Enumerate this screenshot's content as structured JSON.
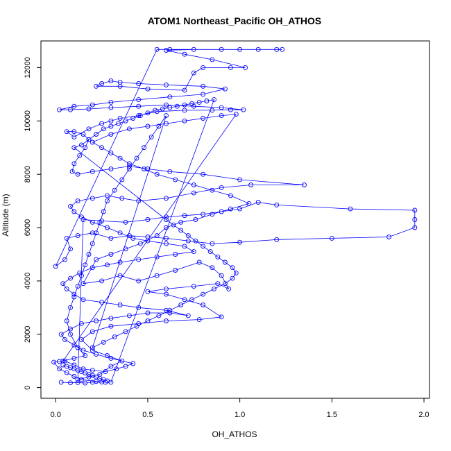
{
  "chart_data": {
    "type": "scatter",
    "title": "ATOM1 Northeast_Pacific OH_ATHOS",
    "xlabel": "OH_ATHOS",
    "ylabel": "Altitude (m)",
    "xlim": [
      -0.08,
      2.03
    ],
    "ylim": [
      -400,
      13000
    ],
    "xticks": [
      0.0,
      0.5,
      1.0,
      1.5,
      2.0
    ],
    "xtick_labels": [
      "0.0",
      "0.5",
      "1.0",
      "1.5",
      "2.0"
    ],
    "yticks": [
      0,
      2000,
      4000,
      6000,
      8000,
      10000,
      12000
    ],
    "ytick_labels": [
      "0",
      "2000",
      "4000",
      "6000",
      "8000",
      "10000",
      "12000"
    ],
    "grid": false,
    "legend": "none",
    "marker": "open-circle",
    "connected": true,
    "color": "#0000ff",
    "points": [
      [
        0.03,
        200
      ],
      [
        0.08,
        180
      ],
      [
        0.12,
        190
      ],
      [
        0.16,
        170
      ],
      [
        0.2,
        200
      ],
      [
        0.25,
        210
      ],
      [
        0.27,
        200
      ],
      [
        0.22,
        230
      ],
      [
        0.14,
        300
      ],
      [
        0.1,
        420
      ],
      [
        0.06,
        560
      ],
      [
        0.02,
        700
      ],
      [
        -0.01,
        950
      ],
      [
        0.02,
        980
      ],
      [
        0.05,
        1000
      ],
      [
        0.1,
        850
      ],
      [
        0.15,
        700
      ],
      [
        0.2,
        650
      ],
      [
        0.27,
        600
      ],
      [
        0.33,
        700
      ],
      [
        0.38,
        800
      ],
      [
        0.42,
        900
      ],
      [
        0.3,
        1100
      ],
      [
        0.22,
        1250
      ],
      [
        0.15,
        1400
      ],
      [
        0.1,
        1600
      ],
      [
        0.05,
        1800
      ],
      [
        0.03,
        2000
      ],
      [
        0.08,
        2200
      ],
      [
        0.14,
        2400
      ],
      [
        0.22,
        2500
      ],
      [
        0.3,
        2600
      ],
      [
        0.4,
        2700
      ],
      [
        0.5,
        2800
      ],
      [
        0.62,
        2800
      ],
      [
        0.72,
        2700
      ],
      [
        0.6,
        2900
      ],
      [
        0.45,
        3000
      ],
      [
        0.35,
        3100
      ],
      [
        0.25,
        3200
      ],
      [
        0.15,
        3300
      ],
      [
        0.1,
        3500
      ],
      [
        0.06,
        3700
      ],
      [
        0.04,
        3900
      ],
      [
        0.08,
        4100
      ],
      [
        0.13,
        4300
      ],
      [
        0.2,
        4500
      ],
      [
        0.28,
        4600
      ],
      [
        0.35,
        4700
      ],
      [
        0.45,
        4800
      ],
      [
        0.55,
        4900
      ],
      [
        0.65,
        5000
      ],
      [
        0.75,
        5100
      ],
      [
        0.7,
        5300
      ],
      [
        0.6,
        5400
      ],
      [
        0.5,
        5500
      ],
      [
        0.42,
        5600
      ],
      [
        0.35,
        5800
      ],
      [
        0.28,
        6000
      ],
      [
        0.2,
        6200
      ],
      [
        0.14,
        6400
      ],
      [
        0.1,
        6600
      ],
      [
        0.08,
        6800
      ],
      [
        0.12,
        7000
      ],
      [
        0.2,
        7100
      ],
      [
        0.28,
        7200
      ],
      [
        0.36,
        7100
      ],
      [
        0.45,
        7000
      ],
      [
        0.6,
        7100
      ],
      [
        0.75,
        7300
      ],
      [
        0.9,
        7500
      ],
      [
        1.06,
        7600
      ],
      [
        1.35,
        7600
      ],
      [
        1.0,
        7800
      ],
      [
        0.8,
        8000
      ],
      [
        0.62,
        8100
      ],
      [
        0.5,
        8200
      ],
      [
        0.4,
        8300
      ],
      [
        0.3,
        8200
      ],
      [
        0.2,
        8100
      ],
      [
        0.12,
        8000
      ],
      [
        0.09,
        8100
      ],
      [
        0.1,
        8400
      ],
      [
        0.13,
        8700
      ],
      [
        0.16,
        9000
      ],
      [
        0.18,
        9300
      ],
      [
        0.15,
        9500
      ],
      [
        0.1,
        9600
      ],
      [
        0.06,
        9600
      ],
      [
        0.1,
        9400
      ],
      [
        0.18,
        9700
      ],
      [
        0.25,
        9900
      ],
      [
        0.3,
        10000
      ],
      [
        0.35,
        10100
      ],
      [
        0.45,
        10200
      ],
      [
        0.55,
        10350
      ],
      [
        0.7,
        10400
      ],
      [
        0.85,
        10400
      ],
      [
        0.95,
        10420
      ],
      [
        1.02,
        10420
      ],
      [
        0.9,
        10500
      ],
      [
        0.75,
        10550
      ],
      [
        0.6,
        10600
      ],
      [
        0.45,
        10550
      ],
      [
        0.3,
        10500
      ],
      [
        0.18,
        10450
      ],
      [
        0.08,
        10420
      ],
      [
        0.02,
        10420
      ],
      [
        0.1,
        10550
      ],
      [
        0.2,
        10600
      ],
      [
        0.3,
        10700
      ],
      [
        0.45,
        10800
      ],
      [
        0.62,
        10900
      ],
      [
        0.8,
        11000
      ],
      [
        0.92,
        11200
      ],
      [
        0.8,
        11300
      ],
      [
        0.6,
        11350
      ],
      [
        0.45,
        11400
      ],
      [
        0.35,
        11450
      ],
      [
        0.3,
        11500
      ],
      [
        0.25,
        11400
      ],
      [
        0.22,
        11300
      ],
      [
        0.35,
        11300
      ],
      [
        0.5,
        11200
      ],
      [
        0.7,
        11150
      ],
      [
        0.75,
        11800
      ],
      [
        0.8,
        12000
      ],
      [
        0.95,
        12000
      ],
      [
        1.03,
        12000
      ],
      [
        0.85,
        12300
      ],
      [
        0.7,
        12500
      ],
      [
        0.6,
        12650
      ],
      [
        0.75,
        12680
      ],
      [
        0.9,
        12680
      ],
      [
        1.0,
        12680
      ],
      [
        1.1,
        12680
      ],
      [
        1.2,
        12680
      ],
      [
        1.23,
        12680
      ],
      [
        0.62,
        12680
      ],
      [
        0.55,
        12680
      ],
      [
        0.0,
        4550
      ],
      [
        0.05,
        4800
      ],
      [
        0.08,
        5200
      ],
      [
        0.06,
        5600
      ],
      [
        0.12,
        5700
      ],
      [
        0.2,
        5800
      ],
      [
        0.3,
        5600
      ],
      [
        0.4,
        5700
      ],
      [
        0.5,
        5650
      ],
      [
        0.6,
        5600
      ],
      [
        0.72,
        5500
      ],
      [
        0.85,
        5400
      ],
      [
        1.0,
        5450
      ],
      [
        1.2,
        5550
      ],
      [
        1.5,
        5600
      ],
      [
        1.81,
        5650
      ],
      [
        1.95,
        6000
      ],
      [
        1.95,
        6300
      ],
      [
        1.95,
        6650
      ],
      [
        1.6,
        6700
      ],
      [
        1.2,
        6850
      ],
      [
        1.1,
        6950
      ],
      [
        1.0,
        6700
      ],
      [
        0.9,
        6600
      ],
      [
        0.8,
        6500
      ],
      [
        0.7,
        6450
      ],
      [
        0.6,
        6400
      ],
      [
        0.5,
        6300
      ],
      [
        0.38,
        6200
      ],
      [
        0.25,
        6250
      ],
      [
        0.15,
        6300
      ],
      [
        0.12,
        300
      ],
      [
        0.18,
        400
      ],
      [
        0.24,
        500
      ],
      [
        0.3,
        800
      ],
      [
        0.36,
        1000
      ],
      [
        0.28,
        1200
      ],
      [
        0.2,
        1400
      ],
      [
        0.14,
        1800
      ],
      [
        0.2,
        2100
      ],
      [
        0.3,
        2300
      ],
      [
        0.45,
        2400
      ],
      [
        0.6,
        2500
      ],
      [
        0.78,
        2550
      ],
      [
        0.9,
        2650
      ],
      [
        0.8,
        3100
      ],
      [
        0.7,
        3300
      ],
      [
        0.6,
        3500
      ],
      [
        0.5,
        3600
      ],
      [
        0.6,
        3700
      ],
      [
        0.75,
        3800
      ],
      [
        0.88,
        3900
      ],
      [
        0.94,
        3700
      ],
      [
        0.9,
        4200
      ],
      [
        0.85,
        4500
      ],
      [
        0.78,
        4700
      ],
      [
        0.65,
        4400
      ],
      [
        0.55,
        4200
      ],
      [
        0.45,
        4000
      ],
      [
        0.35,
        4200
      ],
      [
        0.25,
        4000
      ],
      [
        0.15,
        3900
      ],
      [
        0.22,
        4800
      ],
      [
        0.3,
        5000
      ],
      [
        0.38,
        5200
      ],
      [
        0.46,
        5400
      ],
      [
        0.55,
        5700
      ],
      [
        0.6,
        6000
      ],
      [
        0.68,
        6200
      ],
      [
        0.76,
        6300
      ],
      [
        0.85,
        6500
      ],
      [
        0.95,
        6700
      ],
      [
        1.05,
        6900
      ],
      [
        0.95,
        7200
      ],
      [
        0.85,
        7400
      ],
      [
        0.75,
        7600
      ],
      [
        0.65,
        7800
      ],
      [
        0.55,
        8000
      ],
      [
        0.48,
        8200
      ],
      [
        0.4,
        8400
      ],
      [
        0.35,
        8600
      ],
      [
        0.3,
        8800
      ],
      [
        0.25,
        9000
      ],
      [
        0.2,
        9200
      ],
      [
        0.3,
        9500
      ],
      [
        0.4,
        9700
      ],
      [
        0.5,
        9800
      ],
      [
        0.6,
        9900
      ],
      [
        0.7,
        10000
      ],
      [
        0.8,
        10100
      ],
      [
        0.9,
        10200
      ],
      [
        0.98,
        10250
      ],
      [
        0.04,
        1000
      ],
      [
        0.1,
        1100
      ],
      [
        0.16,
        1200
      ],
      [
        0.12,
        1500
      ],
      [
        0.08,
        2000
      ],
      [
        0.06,
        2500
      ],
      [
        0.08,
        3000
      ],
      [
        0.1,
        3400
      ],
      [
        0.12,
        3800
      ],
      [
        0.14,
        4200
      ],
      [
        0.16,
        4600
      ],
      [
        0.18,
        5000
      ],
      [
        0.2,
        5400
      ],
      [
        0.22,
        5800
      ],
      [
        0.24,
        6200
      ],
      [
        0.26,
        6600
      ],
      [
        0.28,
        7000
      ],
      [
        0.32,
        7400
      ],
      [
        0.36,
        7800
      ],
      [
        0.4,
        8200
      ],
      [
        0.44,
        8600
      ],
      [
        0.48,
        9000
      ],
      [
        0.52,
        9400
      ],
      [
        0.56,
        9800
      ],
      [
        0.6,
        10200
      ],
      [
        0.2,
        1500
      ],
      [
        0.26,
        1700
      ],
      [
        0.32,
        1900
      ],
      [
        0.38,
        2100
      ],
      [
        0.44,
        2300
      ],
      [
        0.5,
        2500
      ],
      [
        0.56,
        2700
      ],
      [
        0.62,
        2900
      ],
      [
        0.68,
        3100
      ],
      [
        0.74,
        3300
      ],
      [
        0.8,
        3500
      ],
      [
        0.86,
        3700
      ],
      [
        0.92,
        3900
      ],
      [
        0.96,
        4100
      ],
      [
        0.98,
        4300
      ],
      [
        0.96,
        4500
      ],
      [
        0.92,
        4700
      ],
      [
        0.88,
        4900
      ],
      [
        0.84,
        5100
      ],
      [
        0.8,
        5300
      ],
      [
        0.76,
        5500
      ],
      [
        0.72,
        5700
      ],
      [
        0.68,
        5900
      ],
      [
        0.64,
        6100
      ],
      [
        0.6,
        6300
      ],
      [
        0.1,
        9000
      ],
      [
        0.14,
        9100
      ],
      [
        0.18,
        9300
      ],
      [
        0.22,
        9500
      ],
      [
        0.26,
        9700
      ],
      [
        0.3,
        9800
      ],
      [
        0.34,
        9900
      ],
      [
        0.38,
        10000
      ],
      [
        0.42,
        10100
      ],
      [
        0.46,
        10200
      ],
      [
        0.5,
        10300
      ],
      [
        0.54,
        10400
      ],
      [
        0.58,
        10450
      ],
      [
        0.62,
        10500
      ],
      [
        0.66,
        10550
      ],
      [
        0.7,
        10600
      ],
      [
        0.74,
        10650
      ],
      [
        0.78,
        10700
      ],
      [
        0.82,
        10750
      ],
      [
        0.86,
        10800
      ],
      [
        0.3,
        200
      ],
      [
        0.28,
        250
      ],
      [
        0.26,
        300
      ],
      [
        0.24,
        350
      ],
      [
        0.22,
        400
      ],
      [
        0.2,
        450
      ],
      [
        0.18,
        500
      ],
      [
        0.16,
        550
      ],
      [
        0.14,
        600
      ],
      [
        0.12,
        650
      ],
      [
        0.1,
        700
      ],
      [
        0.08,
        750
      ],
      [
        0.06,
        800
      ],
      [
        0.04,
        850
      ]
    ]
  }
}
